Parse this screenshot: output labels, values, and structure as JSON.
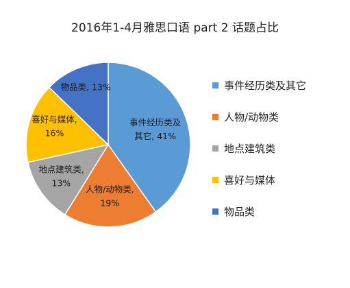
{
  "chart_data": {
    "type": "pie",
    "title": "2016年1-4月雅思口语 part 2 话题占比",
    "categories": [
      "事件经历类及其它",
      "人物/动物类",
      "地点建筑类",
      "喜好与媒体",
      "物品类"
    ],
    "values": [
      41,
      19,
      13,
      16,
      13
    ],
    "colors": [
      "#5B9BD5",
      "#ED7D31",
      "#A5A5A5",
      "#FFC000",
      "#4472C4"
    ],
    "data_labels": [
      [
        "事件经历类及",
        "其它, 41%"
      ],
      [
        "人物/动物类,",
        "19%"
      ],
      [
        "地点建筑类,",
        "13%"
      ],
      [
        "喜好与媒体,",
        "16%"
      ],
      [
        "物品类, 13%"
      ]
    ],
    "legend_position": "right"
  }
}
